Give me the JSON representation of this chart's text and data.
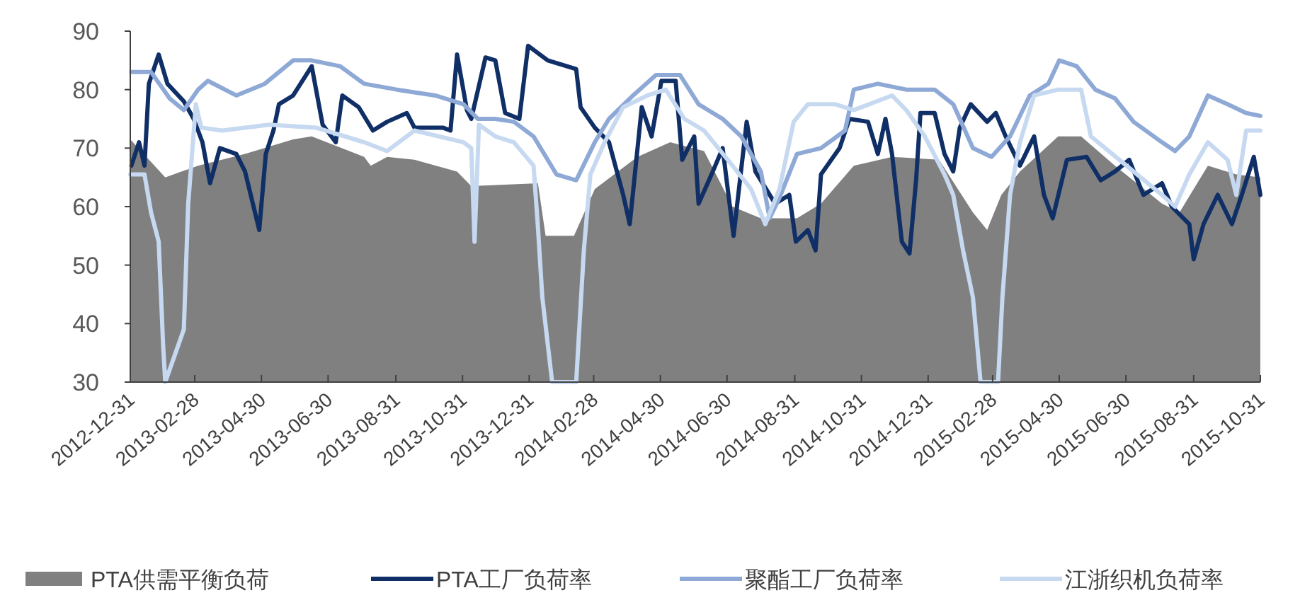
{
  "chart_data": {
    "type": "line",
    "xlim": [
      "2012-12-31",
      "2015-10-31"
    ],
    "xticks": [
      "2012-12-31",
      "2013-02-28",
      "2013-04-30",
      "2013-06-30",
      "2013-08-31",
      "2013-10-31",
      "2013-12-31",
      "2014-02-28",
      "2014-04-30",
      "2014-06-30",
      "2014-08-31",
      "2014-10-31",
      "2014-12-31",
      "2015-02-28",
      "2015-04-30",
      "2015-06-30",
      "2015-08-31",
      "2015-10-31"
    ],
    "ylim": [
      30,
      90
    ],
    "yticks": [
      30,
      40,
      50,
      60,
      70,
      80,
      90
    ],
    "grid": false,
    "legend": "bottom",
    "series": [
      {
        "name": "PTA供需平衡负荷",
        "type": "area",
        "color": "#808080",
        "x": [
          "2012-12-31",
          "2013-02-01",
          "2013-03-03",
          "2013-04-15",
          "2013-05-29",
          "2013-06-15",
          "2013-08-02",
          "2013-08-08",
          "2013-08-23",
          "2013-09-17",
          "2013-10-26",
          "2013-11-08",
          "2014-01-08",
          "2014-01-15",
          "2014-02-10",
          "2014-03-01",
          "2014-04-09",
          "2014-05-09",
          "2014-06-09",
          "2014-07-05",
          "2014-07-31",
          "2014-09-02",
          "2014-09-24",
          "2014-10-24",
          "2014-11-28",
          "2015-01-10",
          "2015-02-10",
          "2015-02-23",
          "2015-03-08",
          "2015-03-25",
          "2015-04-29",
          "2015-05-20",
          "2015-06-20",
          "2015-08-02",
          "2015-08-18",
          "2015-09-13",
          "2015-10-09",
          "2015-10-31"
        ],
        "values": [
          71.5,
          65,
          67,
          69,
          71.5,
          72,
          68.5,
          67,
          68.5,
          68,
          66,
          63.5,
          64,
          55,
          55,
          63,
          68.5,
          71,
          69.5,
          60,
          58,
          58,
          60.5,
          67,
          68.5,
          68,
          59,
          56,
          62,
          66,
          72,
          72,
          67,
          60.5,
          59,
          67,
          65.5,
          65
        ]
      },
      {
        "name": "PTA工厂负荷率",
        "color": "#0f2f66",
        "x": [
          "2013-01-01",
          "2013-01-08",
          "2013-01-13",
          "2013-01-17",
          "2013-01-26",
          "2013-02-03",
          "2013-02-18",
          "2013-02-27",
          "2013-03-07",
          "2013-03-14",
          "2013-03-23",
          "2013-04-07",
          "2013-04-15",
          "2013-04-28",
          "2013-05-04",
          "2013-05-11",
          "2013-05-16",
          "2013-05-29",
          "2013-06-15",
          "2013-06-25",
          "2013-07-07",
          "2013-07-13",
          "2013-07-28",
          "2013-08-10",
          "2013-08-23",
          "2013-09-10",
          "2013-09-17",
          "2013-10-13",
          "2013-10-20",
          "2013-10-26",
          "2013-11-04",
          "2013-11-08",
          "2013-11-21",
          "2013-11-30",
          "2013-12-09",
          "2013-12-22",
          "2013-12-30",
          "2014-01-17",
          "2014-02-12",
          "2014-02-16",
          "2014-03-01",
          "2014-03-14",
          "2014-03-27",
          "2014-04-02",
          "2014-04-13",
          "2014-04-22",
          "2014-05-01",
          "2014-05-14",
          "2014-05-20",
          "2014-05-31",
          "2014-06-04",
          "2014-06-17",
          "2014-06-26",
          "2014-07-06",
          "2014-07-18",
          "2014-07-26",
          "2014-08-13",
          "2014-08-26",
          "2014-09-01",
          "2014-09-12",
          "2014-09-19",
          "2014-09-24",
          "2014-10-11",
          "2014-10-20",
          "2014-11-06",
          "2014-11-15",
          "2014-11-22",
          "2014-11-28",
          "2014-12-07",
          "2014-12-14",
          "2014-12-20",
          "2014-12-24",
          "2015-01-06",
          "2015-01-15",
          "2015-01-23",
          "2015-01-29",
          "2015-02-08",
          "2015-02-23",
          "2015-03-03",
          "2015-03-12",
          "2015-03-25",
          "2015-04-07",
          "2015-04-16",
          "2015-04-24",
          "2015-05-07",
          "2015-05-25",
          "2015-06-07",
          "2015-06-20",
          "2015-07-03",
          "2015-07-16",
          "2015-08-02",
          "2015-08-11",
          "2015-08-27",
          "2015-08-31",
          "2015-09-09",
          "2015-09-22",
          "2015-10-05",
          "2015-10-14",
          "2015-10-25",
          "2015-10-31"
        ],
        "values": [
          67,
          71,
          67,
          81,
          86,
          81,
          78,
          75,
          71,
          64,
          70,
          69,
          66,
          56,
          69,
          73,
          77.5,
          79,
          84,
          74,
          71,
          79,
          77,
          73,
          74.5,
          76,
          73.5,
          73.5,
          73,
          86,
          76.5,
          75,
          85.5,
          85,
          76,
          75,
          87.5,
          85,
          83.5,
          77,
          73.5,
          71,
          62,
          57,
          77,
          72,
          81.5,
          81.5,
          68,
          72,
          60.5,
          66,
          70,
          55,
          74.5,
          66,
          60.5,
          62,
          54,
          56,
          52.5,
          65.5,
          70,
          75,
          74.5,
          69,
          75,
          69,
          54,
          52,
          64.5,
          76,
          76,
          69,
          66,
          73.5,
          77.5,
          74.5,
          76,
          72,
          67,
          72,
          62,
          58,
          68,
          68.5,
          64.5,
          66,
          68,
          62,
          64,
          60,
          57,
          51,
          57,
          62,
          57,
          62,
          68.5,
          62
        ]
      },
      {
        "name": "聚酯工厂负荷率",
        "color": "#8ea9d6",
        "x": [
          "2013-01-01",
          "2013-01-19",
          "2013-02-05",
          "2013-02-18",
          "2013-03-03",
          "2013-03-12",
          "2013-04-07",
          "2013-05-03",
          "2013-05-29",
          "2013-06-15",
          "2013-07-11",
          "2013-08-02",
          "2013-09-01",
          "2013-10-06",
          "2013-11-01",
          "2013-11-14",
          "2013-11-30",
          "2013-12-17",
          "2014-01-04",
          "2014-01-25",
          "2014-02-12",
          "2014-03-01",
          "2014-03-14",
          "2014-04-05",
          "2014-04-26",
          "2014-05-18",
          "2014-06-04",
          "2014-06-26",
          "2014-07-13",
          "2014-07-31",
          "2014-08-08",
          "2014-08-17",
          "2014-09-02",
          "2014-09-24",
          "2014-10-16",
          "2014-10-24",
          "2014-11-15",
          "2014-12-11",
          "2015-01-06",
          "2015-01-23",
          "2015-02-10",
          "2015-02-27",
          "2015-03-16",
          "2015-04-03",
          "2015-04-20",
          "2015-04-30",
          "2015-05-16",
          "2015-06-02",
          "2015-06-20",
          "2015-07-07",
          "2015-08-02",
          "2015-08-14",
          "2015-08-27",
          "2015-09-13",
          "2015-10-01",
          "2015-10-18",
          "2015-10-31"
        ],
        "values": [
          83,
          83,
          78.5,
          76.5,
          80,
          81.5,
          79,
          81,
          85,
          85,
          84,
          81,
          80,
          79,
          77.5,
          75,
          75,
          74.5,
          72,
          65.5,
          64.5,
          71,
          75,
          79,
          82.5,
          82.5,
          77.5,
          75,
          72,
          66,
          58,
          61.5,
          69,
          70,
          73,
          80,
          81,
          80,
          80,
          77.5,
          70,
          68.5,
          72,
          79,
          81,
          85,
          84,
          80,
          78.5,
          74.5,
          71,
          69.5,
          72,
          79,
          77.5,
          76,
          75.5
        ]
      },
      {
        "name": "江浙织机负荷率",
        "color": "#c6d9f0",
        "x": [
          "2012-12-31",
          "2013-01-13",
          "2013-01-19",
          "2013-01-26",
          "2013-01-30",
          "2013-02-01",
          "2013-02-18",
          "2013-02-22",
          "2013-03-01",
          "2013-03-06",
          "2013-03-25",
          "2013-05-07",
          "2013-06-19",
          "2013-08-02",
          "2013-08-23",
          "2013-09-17",
          "2013-11-01",
          "2013-11-08",
          "2013-11-11",
          "2013-11-15",
          "2013-11-30",
          "2013-12-17",
          "2014-01-04",
          "2014-01-08",
          "2014-01-12",
          "2014-01-21",
          "2014-02-12",
          "2014-02-19",
          "2014-02-25",
          "2014-03-10",
          "2014-03-27",
          "2014-04-18",
          "2014-05-05",
          "2014-05-22",
          "2014-06-09",
          "2014-07-05",
          "2014-07-22",
          "2014-08-04",
          "2014-08-17",
          "2014-08-30",
          "2014-09-12",
          "2014-10-07",
          "2014-10-24",
          "2014-11-28",
          "2014-12-11",
          "2014-12-28",
          "2015-01-15",
          "2015-01-23",
          "2015-02-01",
          "2015-02-10",
          "2015-02-17",
          "2015-03-05",
          "2015-03-09",
          "2015-03-16",
          "2015-03-25",
          "2015-04-07",
          "2015-04-29",
          "2015-05-20",
          "2015-05-29",
          "2015-06-11",
          "2015-07-07",
          "2015-08-02",
          "2015-08-14",
          "2015-08-27",
          "2015-09-13",
          "2015-10-01",
          "2015-10-09",
          "2015-10-18",
          "2015-10-31"
        ],
        "values": [
          65.5,
          65.5,
          59,
          54,
          36.5,
          30,
          39,
          60.5,
          77.5,
          73.5,
          73,
          74,
          73.5,
          71,
          69.5,
          73,
          71,
          70,
          54,
          74,
          72,
          71,
          67,
          56.5,
          44.5,
          30,
          30,
          52.5,
          65.5,
          71,
          77,
          79,
          80,
          75,
          73,
          67,
          63,
          57,
          63,
          74.5,
          77.5,
          77.5,
          76.5,
          79,
          76.5,
          72,
          65.5,
          62,
          52.5,
          44.5,
          30,
          30,
          44.5,
          62,
          71,
          79,
          80,
          80,
          72,
          70,
          66,
          62,
          60,
          65.5,
          71,
          68,
          62,
          73,
          73
        ]
      }
    ]
  }
}
